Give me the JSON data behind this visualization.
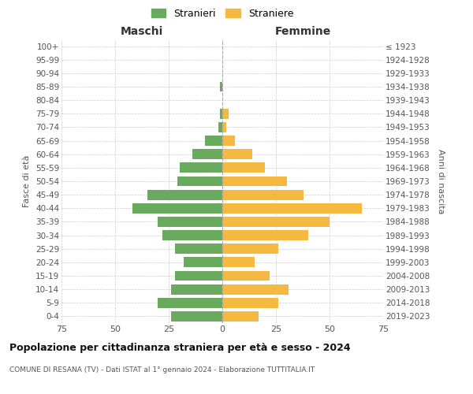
{
  "age_groups_bottom_to_top": [
    "0-4",
    "5-9",
    "10-14",
    "15-19",
    "20-24",
    "25-29",
    "30-34",
    "35-39",
    "40-44",
    "45-49",
    "50-54",
    "55-59",
    "60-64",
    "65-69",
    "70-74",
    "75-79",
    "80-84",
    "85-89",
    "90-94",
    "95-99",
    "100+"
  ],
  "birth_years_bottom_to_top": [
    "2019-2023",
    "2014-2018",
    "2009-2013",
    "2004-2008",
    "1999-2003",
    "1994-1998",
    "1989-1993",
    "1984-1988",
    "1979-1983",
    "1974-1978",
    "1969-1973",
    "1964-1968",
    "1959-1963",
    "1954-1958",
    "1949-1953",
    "1944-1948",
    "1939-1943",
    "1934-1938",
    "1929-1933",
    "1924-1928",
    "≤ 1923"
  ],
  "males_bottom_to_top": [
    24,
    30,
    24,
    22,
    18,
    22,
    28,
    30,
    42,
    35,
    21,
    20,
    14,
    8,
    2,
    1,
    0,
    1,
    0,
    0,
    0
  ],
  "females_bottom_to_top": [
    17,
    26,
    31,
    22,
    15,
    26,
    40,
    50,
    65,
    38,
    30,
    20,
    14,
    6,
    2,
    3,
    0,
    0,
    0,
    0,
    0
  ],
  "male_color": "#6aaa5e",
  "female_color": "#f5b942",
  "title": "Popolazione per cittadinanza straniera per età e sesso - 2024",
  "subtitle": "COMUNE DI RESANA (TV) - Dati ISTAT al 1° gennaio 2024 - Elaborazione TUTTITALIA.IT",
  "legend_male": "Stranieri",
  "legend_female": "Straniere",
  "header_left": "Maschi",
  "header_right": "Femmine",
  "ylabel_left": "Fasce di età",
  "ylabel_right": "Anni di nascita",
  "xlim": 75,
  "background_color": "#ffffff",
  "grid_color": "#cccccc"
}
